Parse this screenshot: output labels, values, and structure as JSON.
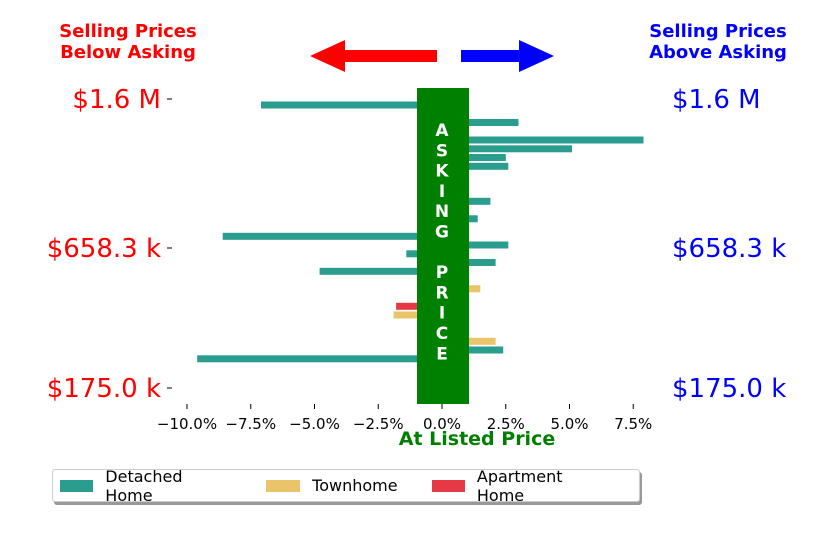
{
  "chart_data": {
    "type": "bar",
    "orientation": "horizontal",
    "header_left": [
      "Selling Prices",
      "Below Asking"
    ],
    "header_right": [
      "Selling Prices",
      "Above Asking"
    ],
    "center_band_text": [
      "A",
      "S",
      "K",
      "I",
      "N",
      "G",
      "",
      "P",
      "R",
      "I",
      "C",
      "E"
    ],
    "xlabel": "At Listed Price",
    "xlim": [
      -0.11,
      0.09
    ],
    "x_ticks": [
      -0.1,
      -0.075,
      -0.05,
      -0.025,
      0.0,
      0.025,
      0.05,
      0.075
    ],
    "x_tick_labels": [
      "−10.0%",
      "−7.5%",
      "−5.0%",
      "−2.5%",
      "0.0%",
      "2.5%",
      "5.0%",
      "7.5%"
    ],
    "y_tick_labels_left": [
      "$1.6 M",
      "$658.3 k",
      "$175.0 k"
    ],
    "y_tick_labels_right": [
      "$1.6 M",
      "$658.3 k",
      "$175.0 k"
    ],
    "left_label_color": "#ff0000",
    "right_label_color": "#0000ff",
    "band_color": "#008000",
    "xlabel_color": "#008000",
    "arrow_left_color": "#ff0000",
    "arrow_right_color": "#0000ff",
    "legend_placement": "bottom",
    "series": [
      {
        "name": "Detached Home",
        "color": "#2a9d8f"
      },
      {
        "name": "Townhome",
        "color": "#e9c46a"
      },
      {
        "name": "Apartment Home",
        "color": "#e63946"
      }
    ],
    "bars": [
      {
        "type": "Detached Home",
        "value": -0.071
      },
      {
        "type": "Detached Home",
        "value": 0.006
      },
      {
        "type": "Detached Home",
        "value": 0.03
      },
      {
        "type": "Detached Home",
        "value": 0.006
      },
      {
        "type": "Detached Home",
        "value": 0.079
      },
      {
        "type": "Detached Home",
        "value": 0.051
      },
      {
        "type": "Detached Home",
        "value": 0.025
      },
      {
        "type": "Detached Home",
        "value": 0.026
      },
      {
        "type": "Detached Home",
        "value": 0.005
      },
      {
        "type": "Detached Home",
        "value": 0.006
      },
      {
        "type": "Detached Home",
        "value": 0.006
      },
      {
        "type": "Detached Home",
        "value": 0.019
      },
      {
        "type": "Townhome",
        "value": 0.006
      },
      {
        "type": "Detached Home",
        "value": 0.014
      },
      {
        "type": "Detached Home",
        "value": 0.006
      },
      {
        "type": "Detached Home",
        "value": -0.086
      },
      {
        "type": "Detached Home",
        "value": 0.026
      },
      {
        "type": "Detached Home",
        "value": -0.014
      },
      {
        "type": "Detached Home",
        "value": 0.021
      },
      {
        "type": "Detached Home",
        "value": -0.048
      },
      {
        "type": "Detached Home",
        "value": 0.006
      },
      {
        "type": "Townhome",
        "value": 0.015
      },
      {
        "type": "Detached Home",
        "value": 0.006
      },
      {
        "type": "Apartment Home",
        "value": -0.018
      },
      {
        "type": "Townhome",
        "value": -0.019
      },
      {
        "type": "Detached Home",
        "value": 0.004
      },
      {
        "type": "Townhome",
        "value": 0.006
      },
      {
        "type": "Townhome",
        "value": 0.021
      },
      {
        "type": "Detached Home",
        "value": 0.024
      },
      {
        "type": "Detached Home",
        "value": -0.096
      },
      {
        "type": "Apartment Home",
        "value": 0.006
      },
      {
        "type": "Apartment Home",
        "value": 0.006
      },
      {
        "type": "Apartment Home",
        "value": 0.006
      },
      {
        "type": "Apartment Home",
        "value": 0.006
      }
    ]
  }
}
